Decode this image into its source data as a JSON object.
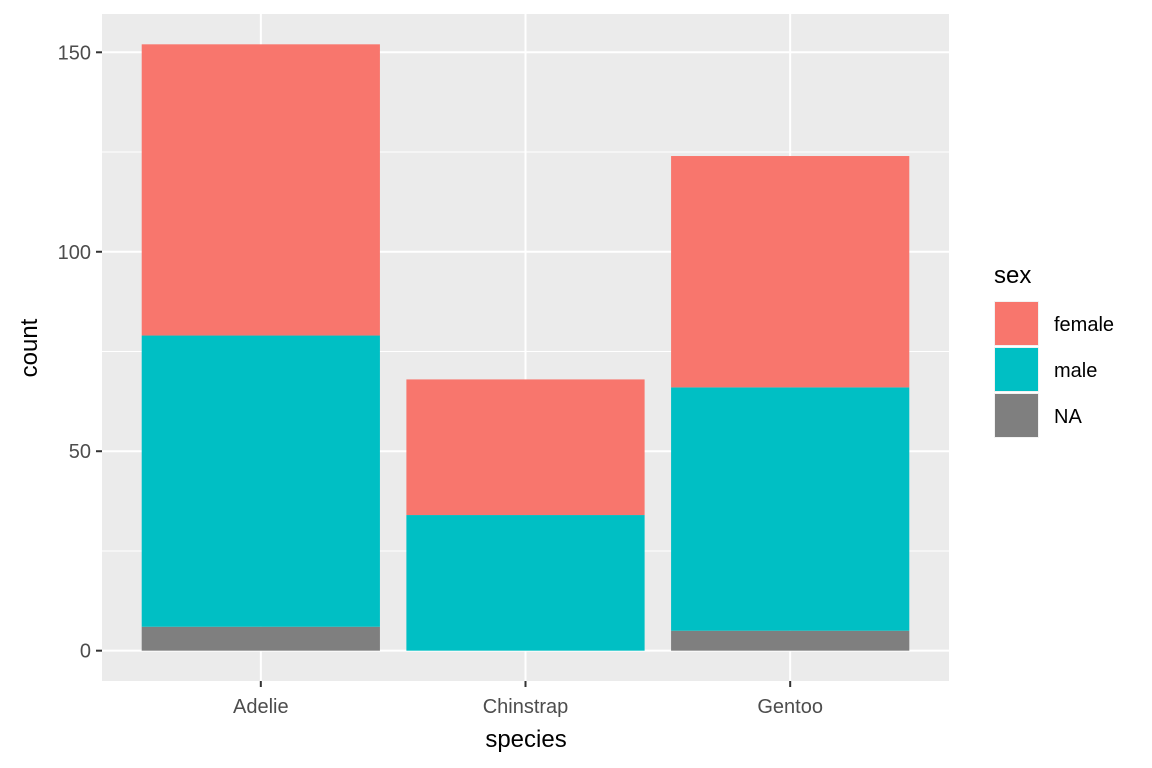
{
  "chart_data": {
    "type": "bar",
    "stacked": true,
    "categories": [
      "Adelie",
      "Chinstrap",
      "Gentoo"
    ],
    "series": [
      {
        "name": "female",
        "color": "#F8766D",
        "values": [
          73,
          34,
          58
        ]
      },
      {
        "name": "male",
        "color": "#00BFC4",
        "values": [
          73,
          34,
          61
        ]
      },
      {
        "name": "NA",
        "color": "#7F7F7F",
        "values": [
          6,
          0,
          5
        ]
      }
    ],
    "xlabel": "species",
    "ylabel": "count",
    "ylim": [
      -7.6,
      159.6
    ],
    "yticks": [
      0,
      50,
      100,
      150
    ],
    "ytick_labels": [
      "0",
      "50",
      "100",
      "150"
    ],
    "grid": true,
    "legend": {
      "title": "sex",
      "position": "right"
    },
    "panel_background": "#EBEBEB",
    "grid_color": "#FFFFFF"
  }
}
